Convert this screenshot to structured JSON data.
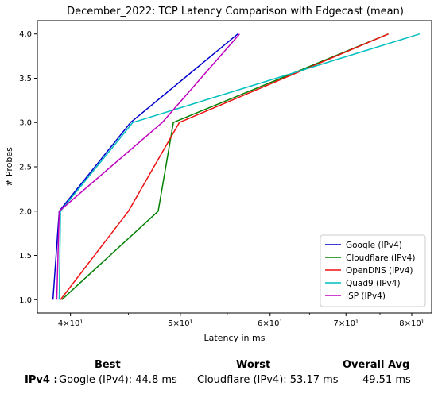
{
  "chart_data": {
    "type": "line",
    "title": "December_2022: TCP Latency Comparison with Edgecast (mean)",
    "xlabel": "Latency in ms",
    "ylabel": "# Probes",
    "xscale": "log",
    "xlim": [
      37.4,
      83.3
    ],
    "ylim": [
      0.85,
      4.15
    ],
    "xticks": [
      {
        "value": 40,
        "label": "4×10¹"
      },
      {
        "value": 50,
        "label": "5×10¹"
      },
      {
        "value": 60,
        "label": "6×10¹"
      },
      {
        "value": 70,
        "label": "7×10¹"
      },
      {
        "value": 80,
        "label": "8×10¹"
      }
    ],
    "yticks": [
      {
        "value": 1.0,
        "label": "1.0"
      },
      {
        "value": 1.5,
        "label": "1.5"
      },
      {
        "value": 2.0,
        "label": "2.0"
      },
      {
        "value": 2.5,
        "label": "2.5"
      },
      {
        "value": 3.0,
        "label": "3.0"
      },
      {
        "value": 3.5,
        "label": "3.5"
      },
      {
        "value": 4.0,
        "label": "4.0"
      }
    ],
    "grid": false,
    "legend_position": "lower-right",
    "series": [
      {
        "name": "Google (IPv4)",
        "color": "#0000cc",
        "x": [
          38.6,
          39.1,
          45.2,
          56.2
        ],
        "y": [
          1,
          2,
          3,
          4
        ]
      },
      {
        "name": "Cloudflare (IPv4)",
        "color": "#008000",
        "x": [
          39.3,
          47.8,
          49.3,
          76.3
        ],
        "y": [
          1,
          2,
          3,
          4
        ]
      },
      {
        "name": "OpenDNS (IPv4)",
        "color": "#ee1111",
        "x": [
          39.2,
          45.0,
          49.9,
          76.3
        ],
        "y": [
          1,
          2,
          3,
          4
        ]
      },
      {
        "name": "Quad9 (IPv4)",
        "color": "#00bfbf",
        "x": [
          39.1,
          39.2,
          45.4,
          81.3
        ],
        "y": [
          1,
          2,
          3,
          4
        ]
      },
      {
        "name": "ISP (IPv4)",
        "color": "#bf00bf",
        "x": [
          38.9,
          39.1,
          48.2,
          56.4
        ],
        "y": [
          1,
          2,
          3,
          4
        ]
      }
    ]
  },
  "summary": {
    "best_header": "Best",
    "worst_header": "Worst",
    "avg_header": "Overall Avg",
    "row_label": "IPv4 :",
    "best_value": "Google (IPv4): 44.8 ms",
    "worst_value": "Cloudflare (IPv4): 53.17 ms",
    "avg_value": "49.51 ms"
  }
}
